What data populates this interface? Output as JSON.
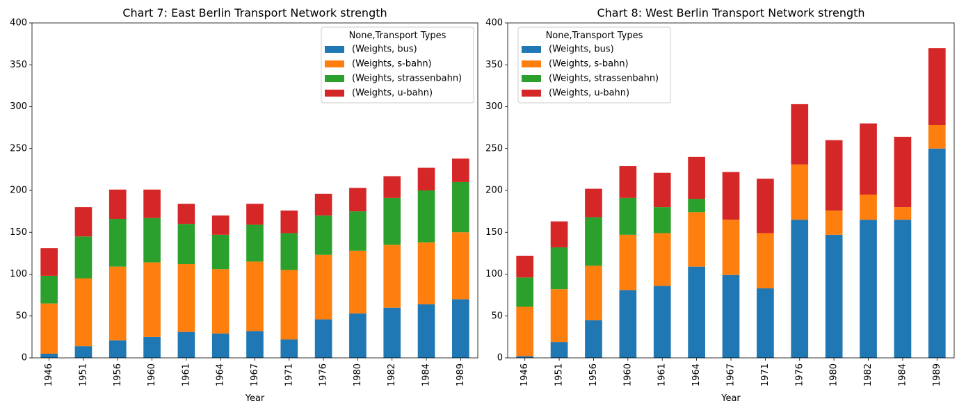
{
  "chart_data": [
    {
      "type": "bar",
      "stacked": true,
      "title": "Chart 7: East Berlin Transport Network strength",
      "xlabel": "Year",
      "ylabel": "",
      "ylim": [
        0,
        400
      ],
      "yticks": [
        0,
        50,
        100,
        150,
        200,
        250,
        300,
        350,
        400
      ],
      "grid": false,
      "legend_title": "None,Transport Types",
      "legend_position": "top-right",
      "categories": [
        "1946",
        "1951",
        "1956",
        "1960",
        "1961",
        "1964",
        "1967",
        "1971",
        "1976",
        "1980",
        "1982",
        "1984",
        "1989"
      ],
      "series": [
        {
          "name": "(Weights, bus)",
          "color": "#1f77b4",
          "values": [
            5,
            14,
            21,
            25,
            31,
            29,
            32,
            22,
            46,
            53,
            60,
            64,
            70
          ]
        },
        {
          "name": "(Weights, s-bahn)",
          "color": "#ff7f0e",
          "values": [
            60,
            81,
            88,
            89,
            81,
            77,
            83,
            83,
            77,
            75,
            75,
            74,
            80
          ]
        },
        {
          "name": "(Weights, strassenbahn)",
          "color": "#2ca02c",
          "values": [
            33,
            50,
            57,
            53,
            48,
            41,
            44,
            44,
            47,
            47,
            56,
            62,
            60
          ]
        },
        {
          "name": "(Weights, u-bahn)",
          "color": "#d62728",
          "values": [
            33,
            35,
            35,
            34,
            24,
            23,
            25,
            27,
            26,
            28,
            26,
            27,
            28
          ]
        }
      ]
    },
    {
      "type": "bar",
      "stacked": true,
      "title": "Chart 8: West Berlin Transport Network strength",
      "xlabel": "Year",
      "ylabel": "",
      "ylim": [
        0,
        400
      ],
      "yticks": [
        0,
        50,
        100,
        150,
        200,
        250,
        300,
        350,
        400
      ],
      "grid": false,
      "legend_title": "None,Transport Types",
      "legend_position": "top-left",
      "categories": [
        "1946",
        "1951",
        "1956",
        "1960",
        "1961",
        "1964",
        "1967",
        "1971",
        "1976",
        "1980",
        "1982",
        "1984",
        "1989"
      ],
      "series": [
        {
          "name": "(Weights, bus)",
          "color": "#1f77b4",
          "values": [
            2,
            19,
            45,
            81,
            86,
            109,
            99,
            83,
            165,
            147,
            165,
            165,
            250
          ]
        },
        {
          "name": "(Weights, s-bahn)",
          "color": "#ff7f0e",
          "values": [
            59,
            63,
            65,
            66,
            63,
            65,
            66,
            66,
            66,
            29,
            30,
            15,
            28
          ]
        },
        {
          "name": "(Weights, strassenbahn)",
          "color": "#2ca02c",
          "values": [
            35,
            50,
            58,
            44,
            31,
            16,
            0,
            0,
            0,
            0,
            0,
            0,
            0
          ]
        },
        {
          "name": "(Weights, u-bahn)",
          "color": "#d62728",
          "values": [
            26,
            31,
            34,
            38,
            41,
            50,
            57,
            65,
            72,
            84,
            85,
            84,
            92
          ]
        }
      ]
    }
  ]
}
